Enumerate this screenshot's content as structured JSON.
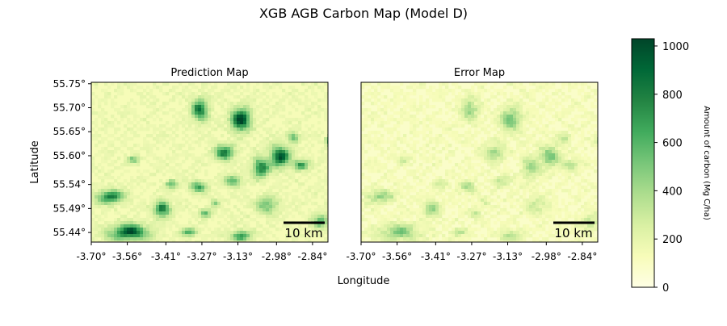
{
  "chart_data": {
    "type": "heatmap",
    "title": "XGB AGB Carbon Map (Model D)",
    "xlabel": "Longitude",
    "ylabel": "Latitude",
    "xlim": [
      -3.7,
      -2.78
    ],
    "ylim": [
      55.42,
      55.753
    ],
    "x_ticks": [
      -3.7,
      -3.56,
      -3.41,
      -3.27,
      -3.13,
      -2.98,
      -2.84
    ],
    "x_tick_labels": [
      "-3.70°",
      "-3.56°",
      "-3.41°",
      "-3.27°",
      "-3.13°",
      "-2.98°",
      "-2.84°"
    ],
    "y_ticks": [
      55.75,
      55.7,
      55.65,
      55.6,
      55.54,
      55.49,
      55.44
    ],
    "y_tick_labels": [
      "55.75°",
      "55.70°",
      "55.65°",
      "55.60°",
      "55.54°",
      "55.49°",
      "55.44°"
    ],
    "panels": [
      {
        "title": "Prediction Map",
        "scalebar_label": "10 km"
      },
      {
        "title": "Error Map",
        "scalebar_label": "10 km"
      }
    ],
    "colorbar": {
      "label": "Amount of carbon (Mg C/ha)",
      "range": [
        0,
        1030
      ],
      "ticks": [
        0,
        200,
        400,
        600,
        800,
        1000
      ],
      "tick_labels": [
        "0",
        "200",
        "400",
        "600",
        "800",
        "1000"
      ],
      "colormap": "YlGn",
      "colors": [
        "#ffffe5",
        "#f7fcb9",
        "#d9f0a3",
        "#addd8e",
        "#78c679",
        "#41ab5d",
        "#238443",
        "#006837",
        "#004529"
      ]
    }
  }
}
